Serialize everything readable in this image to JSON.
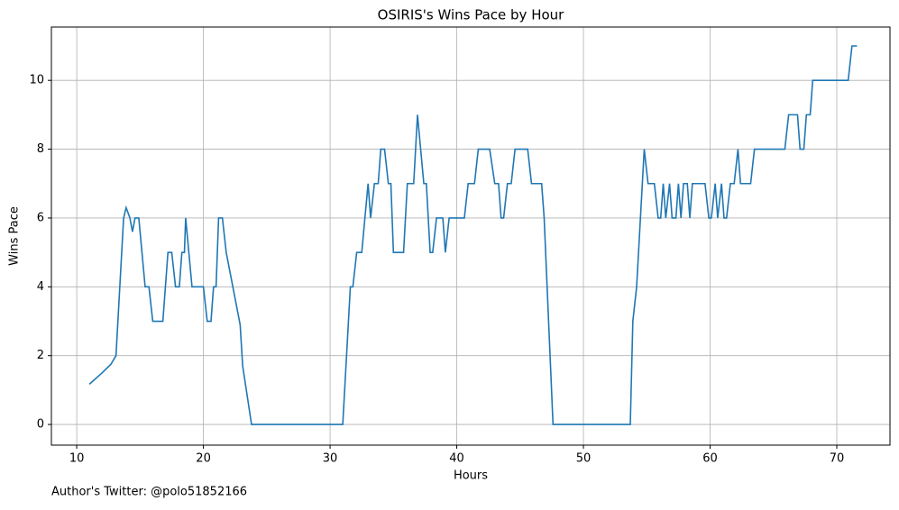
{
  "chart_data": {
    "type": "line",
    "title": "OSIRIS's Wins Pace by Hour",
    "xlabel": "Hours",
    "ylabel": "Wins Pace",
    "footnote": "Author's Twitter: @polo51852166",
    "grid": true,
    "x": [
      11,
      12,
      12.7,
      13.1,
      13.7,
      13.9,
      14.2,
      14.4,
      14.6,
      14.9,
      15.4,
      15.7,
      16.0,
      16.8,
      17.2,
      17.5,
      17.8,
      18.1,
      18.3,
      18.5,
      18.6,
      19.1,
      20.0,
      20.3,
      20.6,
      20.8,
      21.0,
      21.2,
      21.5,
      21.8,
      22.9,
      23.1,
      23.8,
      31.0,
      31.6,
      31.8,
      32.1,
      32.5,
      33.0,
      33.2,
      33.5,
      33.8,
      34.0,
      34.3,
      34.6,
      34.8,
      35.0,
      35.8,
      36.1,
      36.6,
      36.9,
      37.4,
      37.6,
      37.9,
      38.1,
      38.4,
      38.9,
      39.1,
      39.4,
      40.6,
      40.9,
      41.4,
      41.7,
      42.6,
      43.0,
      43.3,
      43.5,
      43.7,
      44.0,
      44.3,
      44.6,
      45.6,
      45.9,
      46.7,
      46.9,
      47.6,
      53.7,
      53.9,
      54.2,
      54.8,
      55.1,
      55.6,
      55.9,
      56.1,
      56.3,
      56.5,
      56.8,
      57.0,
      57.3,
      57.5,
      57.7,
      57.9,
      58.2,
      58.4,
      58.6,
      59.6,
      59.9,
      60.1,
      60.4,
      60.6,
      60.9,
      61.1,
      61.3,
      61.6,
      61.9,
      62.2,
      62.4,
      63.2,
      63.5,
      65.9,
      66.2,
      66.9,
      67.1,
      67.4,
      67.6,
      67.9,
      68.1,
      70.9,
      71.2,
      71.6
    ],
    "series": [
      {
        "name": "Wins Pace",
        "color": "#1f77b4",
        "values": [
          1.17,
          1.5,
          1.75,
          2.0,
          6.0,
          6.3,
          6.0,
          5.6,
          6.0,
          6.0,
          4.0,
          4.0,
          3.0,
          3.0,
          5.0,
          5.0,
          4.0,
          4.0,
          5.0,
          5.0,
          6.0,
          4.0,
          4.0,
          3.0,
          3.0,
          4.0,
          4.0,
          6.0,
          6.0,
          5.0,
          2.9,
          1.7,
          0,
          0,
          4.0,
          4.0,
          5.0,
          5.0,
          7.0,
          6.0,
          7.0,
          7.0,
          8.0,
          8.0,
          7.0,
          7.0,
          5.0,
          5.0,
          7.0,
          7.0,
          9.0,
          7.0,
          7.0,
          5.0,
          5.0,
          6.0,
          6.0,
          5.0,
          6.0,
          6.0,
          7.0,
          7.0,
          8.0,
          8.0,
          7.0,
          7.0,
          6.0,
          6.0,
          7.0,
          7.0,
          8.0,
          8.0,
          7.0,
          7.0,
          6.0,
          0,
          0,
          3.0,
          4.0,
          8.0,
          7.0,
          7.0,
          6.0,
          6.0,
          7.0,
          6.0,
          7.0,
          6.0,
          6.0,
          7.0,
          6.0,
          7.0,
          7.0,
          6.0,
          7.0,
          7.0,
          6.0,
          6.0,
          7.0,
          6.0,
          7.0,
          6.0,
          6.0,
          7.0,
          7.0,
          8.0,
          7.0,
          7.0,
          8.0,
          8.0,
          9.0,
          9.0,
          8.0,
          8.0,
          9.0,
          9.0,
          10.0,
          10.0,
          11.0,
          11.0
        ]
      }
    ],
    "xlim": [
      8.0,
      74.2
    ],
    "ylim": [
      -0.6,
      11.55
    ],
    "xticks": [
      10,
      20,
      30,
      40,
      50,
      60,
      70
    ],
    "yticks": [
      0,
      2,
      4,
      6,
      8,
      10
    ]
  }
}
